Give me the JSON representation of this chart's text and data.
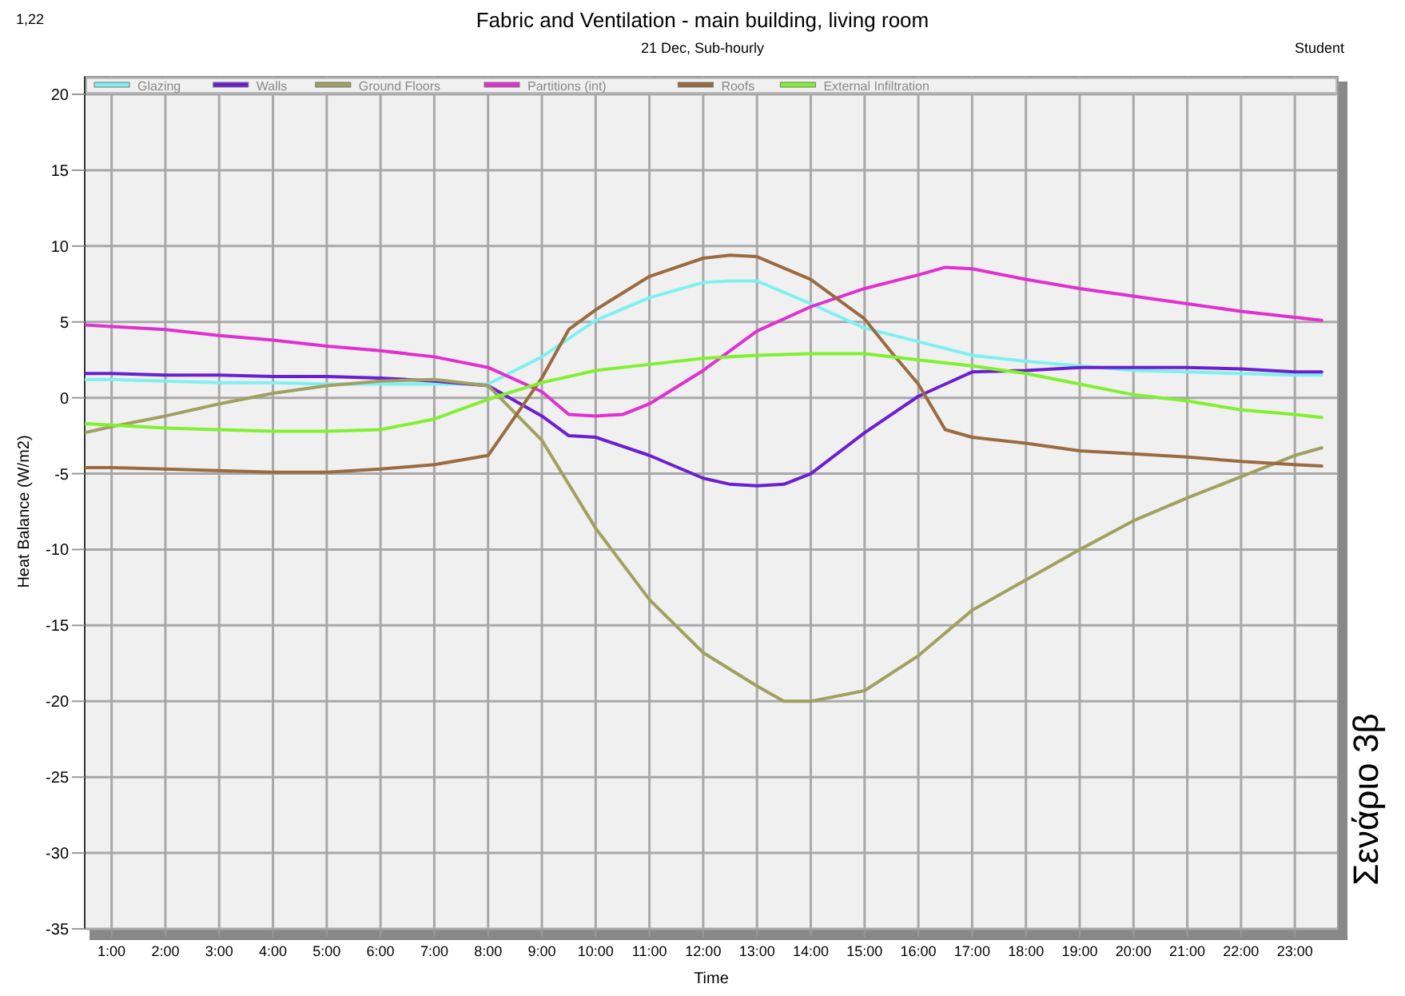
{
  "chart_data": {
    "type": "line",
    "title": "Fabric and Ventilation - main building, living room",
    "subtitle": "21 Dec, Sub-hourly",
    "xlabel": "Time",
    "ylabel": "Heat Balance (W/m2)",
    "annotations": [
      "1,22",
      "Student",
      "Σενάριο 3β"
    ],
    "xlim": [
      0.5,
      23.8
    ],
    "ylim": [
      -35,
      20
    ],
    "xticks": [
      {
        "value": 1,
        "label": "1:00"
      },
      {
        "value": 2,
        "label": "2:00"
      },
      {
        "value": 3,
        "label": "3:00"
      },
      {
        "value": 4,
        "label": "4:00"
      },
      {
        "value": 5,
        "label": "5:00"
      },
      {
        "value": 6,
        "label": "6:00"
      },
      {
        "value": 7,
        "label": "7:00"
      },
      {
        "value": 8,
        "label": "8:00"
      },
      {
        "value": 9,
        "label": "9:00"
      },
      {
        "value": 10,
        "label": "10:00"
      },
      {
        "value": 11,
        "label": "11:00"
      },
      {
        "value": 12,
        "label": "12:00"
      },
      {
        "value": 13,
        "label": "13:00"
      },
      {
        "value": 14,
        "label": "14:00"
      },
      {
        "value": 15,
        "label": "15:00"
      },
      {
        "value": 16,
        "label": "16:00"
      },
      {
        "value": 17,
        "label": "17:00"
      },
      {
        "value": 18,
        "label": "18:00"
      },
      {
        "value": 19,
        "label": "19:00"
      },
      {
        "value": 20,
        "label": "20:00"
      },
      {
        "value": 21,
        "label": "21:00"
      },
      {
        "value": 22,
        "label": "22:00"
      },
      {
        "value": 23,
        "label": "23:00"
      }
    ],
    "yticks": [
      -35,
      -30,
      -25,
      -20,
      -15,
      -10,
      -5,
      0,
      5,
      10,
      15,
      20
    ],
    "grid": true,
    "legend": "top",
    "marker": "none",
    "line_style": "solid",
    "series": [
      {
        "name": "Glazing",
        "color": "#7ff0f0",
        "x": [
          0.5,
          1,
          2,
          3,
          4,
          5,
          6,
          7,
          8,
          9,
          10,
          11,
          12,
          12.5,
          13,
          14,
          15,
          16,
          17,
          18,
          19,
          20,
          21,
          22,
          23,
          23.5
        ],
        "values": [
          1.2,
          1.2,
          1.1,
          1.0,
          1.0,
          0.9,
          0.9,
          0.9,
          0.9,
          2.7,
          5.1,
          6.6,
          7.6,
          7.7,
          7.7,
          6.2,
          4.6,
          3.7,
          2.8,
          2.4,
          2.1,
          1.8,
          1.7,
          1.6,
          1.5,
          1.5
        ]
      },
      {
        "name": "Walls",
        "color": "#6a1fd0",
        "x": [
          0.5,
          1,
          2,
          3,
          4,
          5,
          6,
          7,
          8,
          9,
          9.5,
          10,
          11,
          12,
          12.5,
          13,
          13.5,
          14,
          15,
          16,
          16.5,
          17,
          18,
          19,
          20,
          21,
          22,
          23,
          23.5
        ],
        "values": [
          1.6,
          1.6,
          1.5,
          1.5,
          1.4,
          1.4,
          1.3,
          1.1,
          0.8,
          -1.2,
          -2.5,
          -2.6,
          -3.8,
          -5.3,
          -5.7,
          -5.8,
          -5.7,
          -5.0,
          -2.3,
          0.1,
          0.9,
          1.7,
          1.8,
          2.0,
          2.0,
          2.0,
          1.9,
          1.7,
          1.7
        ]
      },
      {
        "name": "Ground Floors",
        "color": "#a0a060",
        "x": [
          0.5,
          1,
          2,
          3,
          4,
          5,
          6,
          7,
          8,
          9,
          10,
          11,
          12,
          13,
          13.5,
          14,
          15,
          16,
          17,
          18,
          19,
          20,
          21,
          22,
          23,
          23.5
        ],
        "values": [
          -2.3,
          -1.9,
          -1.2,
          -0.4,
          0.3,
          0.8,
          1.1,
          1.2,
          0.8,
          -2.8,
          -8.6,
          -13.3,
          -16.8,
          -19,
          -20,
          -20,
          -19.3,
          -17,
          -14,
          -12,
          -10,
          -8.1,
          -6.6,
          -5.2,
          -3.8,
          -3.3
        ]
      },
      {
        "name": "Partitions (int)",
        "color": "#e030d0",
        "x": [
          0.5,
          1,
          2,
          3,
          4,
          5,
          6,
          7,
          8,
          9,
          9.5,
          10,
          10.5,
          11,
          12,
          13,
          14,
          15,
          16,
          16.5,
          17,
          18,
          19,
          20,
          21,
          22,
          23,
          23.5
        ],
        "values": [
          4.8,
          4.7,
          4.5,
          4.1,
          3.8,
          3.4,
          3.1,
          2.7,
          2.0,
          0.4,
          -1.1,
          -1.2,
          -1.1,
          -0.4,
          1.8,
          4.4,
          6.0,
          7.2,
          8.1,
          8.6,
          8.5,
          7.8,
          7.2,
          6.7,
          6.2,
          5.7,
          5.3,
          5.1
        ]
      },
      {
        "name": "Roofs",
        "color": "#9a6a40",
        "x": [
          0.5,
          1,
          2,
          3,
          4,
          5,
          6,
          7,
          8,
          9,
          9.5,
          10,
          11,
          12,
          12.5,
          13,
          14,
          15,
          15.5,
          16,
          16.5,
          17,
          18,
          19,
          20,
          21,
          22,
          23,
          23.5
        ],
        "values": [
          -4.6,
          -4.6,
          -4.7,
          -4.8,
          -4.9,
          -4.9,
          -4.7,
          -4.4,
          -3.8,
          1.3,
          4.5,
          5.8,
          8.0,
          9.2,
          9.4,
          9.3,
          7.8,
          5.2,
          3.0,
          0.9,
          -2.1,
          -2.6,
          -3.0,
          -3.5,
          -3.7,
          -3.9,
          -4.2,
          -4.4,
          -4.5
        ]
      },
      {
        "name": "External Infiltration",
        "color": "#80f030",
        "x": [
          0.5,
          1,
          2,
          3,
          4,
          5,
          6,
          7,
          8,
          9,
          10,
          11,
          12,
          13,
          14,
          15,
          16,
          17,
          18,
          19,
          20,
          21,
          22,
          23,
          23.5
        ],
        "values": [
          -1.7,
          -1.8,
          -2.0,
          -2.1,
          -2.2,
          -2.2,
          -2.1,
          -1.4,
          -0.1,
          1.0,
          1.8,
          2.2,
          2.6,
          2.8,
          2.9,
          2.9,
          2.5,
          2.1,
          1.6,
          0.9,
          0.2,
          -0.2,
          -0.8,
          -1.1,
          -1.3
        ]
      }
    ]
  }
}
